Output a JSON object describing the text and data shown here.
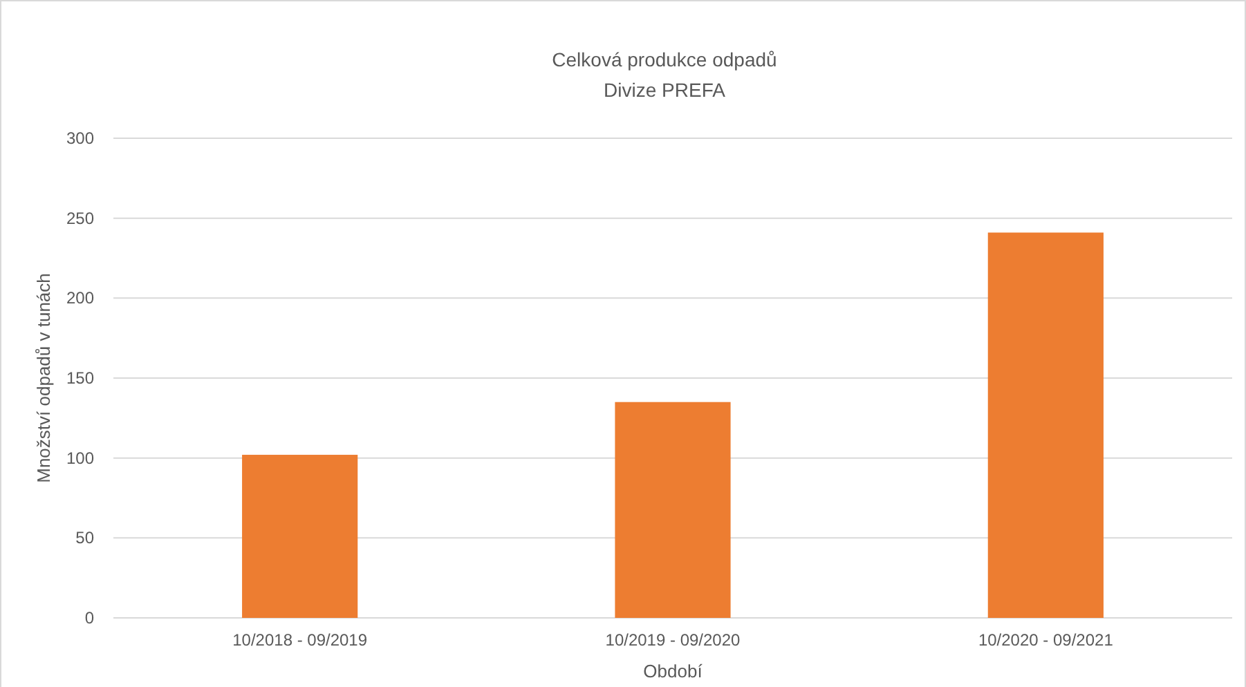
{
  "chart_data": {
    "type": "bar",
    "title": "Celková produkce odpadů",
    "subtitle": "Divize PREFA",
    "xlabel": "Období",
    "ylabel": "Množství odpadů v tunách",
    "categories": [
      "10/2018 - 09/2019",
      "10/2019 - 09/2020",
      "10/2020 - 09/2021"
    ],
    "values": [
      102,
      135,
      241
    ],
    "color": "#ed7d31",
    "ylim": [
      0,
      300
    ],
    "yticks": [
      0,
      50,
      100,
      150,
      200,
      250,
      300
    ],
    "grid": "y"
  }
}
